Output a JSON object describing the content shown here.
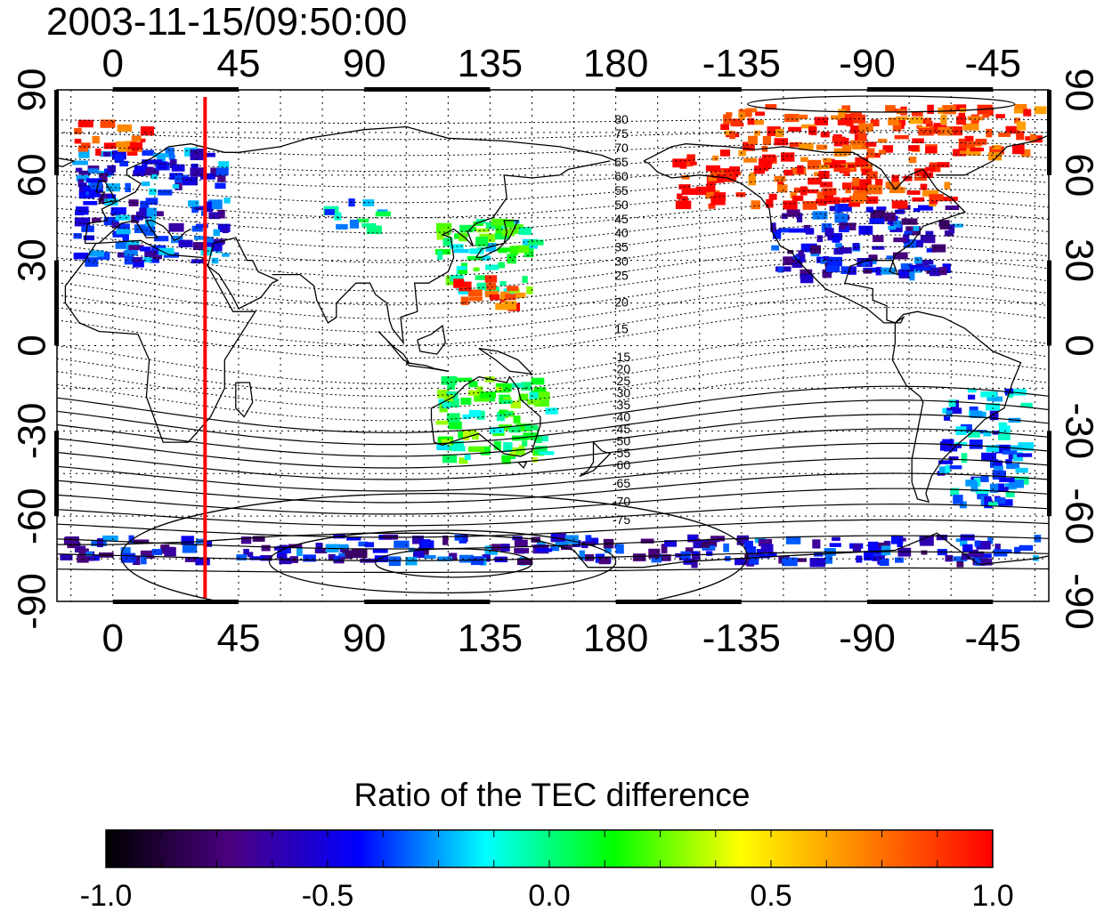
{
  "title": "2003-11-15/09:50:00",
  "map": {
    "lon_ticks": [
      "0",
      "45",
      "90",
      "135",
      "180",
      "-135",
      "-90",
      "-45"
    ],
    "lon_tick_values": [
      0,
      45,
      90,
      135,
      180,
      225,
      270,
      315
    ],
    "lon_range": [
      -20,
      335
    ],
    "lat_ticks": [
      "90",
      "60",
      "30",
      "0",
      "-30",
      "-60",
      "-90"
    ],
    "lat_tick_values": [
      90,
      60,
      30,
      0,
      -30,
      -60,
      -90
    ],
    "lat_range": [
      -90,
      90
    ],
    "grid": true,
    "red_meridian_lon": 33,
    "mlat_labels_north": [
      "80",
      "75",
      "70",
      "65",
      "60",
      "55",
      "50",
      "45",
      "40",
      "35",
      "30",
      "25",
      "20",
      "15"
    ],
    "mlat_labels_south": [
      "-15",
      "-20",
      "-25",
      "-30",
      "-35",
      "-40",
      "-45",
      "-50",
      "-55",
      "-60",
      "-65",
      "-70",
      "-75"
    ]
  },
  "colorbar": {
    "title": "Ratio of the TEC difference",
    "range": [
      -1.0,
      1.0
    ],
    "tick_labels": [
      "-1.0",
      "-0.5",
      "0.0",
      "0.5",
      "1.0"
    ],
    "tick_values": [
      -1.0,
      -0.5,
      0.0,
      0.5,
      1.0
    ],
    "colors": [
      "#000000",
      "#4b0082",
      "#0000ff",
      "#00ffff",
      "#00ff00",
      "#ffff00",
      "#ff8000",
      "#ff0000"
    ]
  },
  "chart_data": {
    "type": "heatmap",
    "title": "2003-11-15/09:50:00",
    "xlabel": "",
    "ylabel": "",
    "xlim": [
      -20,
      335
    ],
    "ylim": [
      -90,
      90
    ],
    "colorbar_label": "Ratio of the TEC difference",
    "value_range": [
      -1.0,
      1.0
    ],
    "regions": [
      {
        "lon": [
          -15,
          40
        ],
        "lat": [
          30,
          70
        ],
        "value": -0.45
      },
      {
        "lon": [
          -15,
          10
        ],
        "lat": [
          68,
          80
        ],
        "value": 0.9
      },
      {
        "lon": [
          75,
          95
        ],
        "lat": [
          42,
          52
        ],
        "value": -0.15
      },
      {
        "lon": [
          115,
          150
        ],
        "lat": [
          20,
          45
        ],
        "value": 0.05
      },
      {
        "lon": [
          120,
          145
        ],
        "lat": [
          15,
          25
        ],
        "value": 0.85
      },
      {
        "lon": [
          235,
          300
        ],
        "lat": [
          25,
          50
        ],
        "value": -0.5
      },
      {
        "lon": [
          200,
          300
        ],
        "lat": [
          50,
          68
        ],
        "value": 0.95
      },
      {
        "lon": [
          215,
          330
        ],
        "lat": [
          68,
          85
        ],
        "value": 0.9
      },
      {
        "lon": [
          115,
          155
        ],
        "lat": [
          -40,
          -10
        ],
        "value": 0.1
      },
      {
        "lon": [
          295,
          325
        ],
        "lat": [
          -55,
          -15
        ],
        "value": -0.3
      },
      {
        "lon": [
          -20,
          330
        ],
        "lat": [
          -75,
          -66
        ],
        "value": -0.5
      }
    ]
  }
}
